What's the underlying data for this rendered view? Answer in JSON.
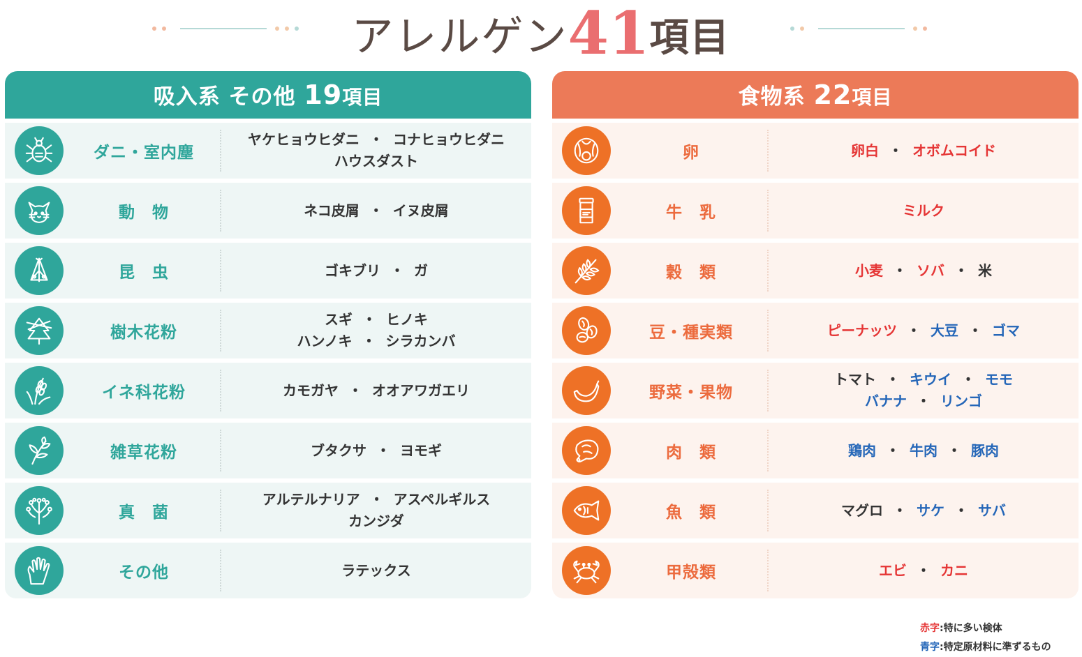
{
  "title": {
    "main": "アレルゲン",
    "number": "41",
    "suffix": "項目"
  },
  "colors": {
    "teal": "#2fa69b",
    "orange": "#ec7a58",
    "red_text": "#e53535",
    "blue_text": "#2466b8"
  },
  "left": {
    "header": {
      "prefix": "吸入系 その他 ",
      "count": "19",
      "suffix": "項目"
    },
    "rows": [
      {
        "icon": "mite-icon",
        "category": "ダニ・室内塵",
        "lines": [
          [
            {
              "t": "ヤケヒョウヒダニ",
              "c": "k"
            },
            {
              "t": "コナヒョウヒダニ",
              "c": "k"
            }
          ],
          [
            {
              "t": "ハウスダスト",
              "c": "k"
            }
          ]
        ]
      },
      {
        "icon": "cat-icon",
        "category": "動　物",
        "lines": [
          [
            {
              "t": "ネコ皮屑",
              "c": "k"
            },
            {
              "t": "イヌ皮屑",
              "c": "k"
            }
          ]
        ]
      },
      {
        "icon": "insect-icon",
        "category": "昆　虫",
        "lines": [
          [
            {
              "t": "ゴキブリ",
              "c": "k"
            },
            {
              "t": "ガ",
              "c": "k"
            }
          ]
        ]
      },
      {
        "icon": "tree-icon",
        "category": "樹木花粉",
        "lines": [
          [
            {
              "t": "スギ",
              "c": "k"
            },
            {
              "t": "ヒノキ",
              "c": "k"
            }
          ],
          [
            {
              "t": "ハンノキ",
              "c": "k"
            },
            {
              "t": "シラカンバ",
              "c": "k"
            }
          ]
        ]
      },
      {
        "icon": "grass-icon",
        "category": "イネ科花粉",
        "lines": [
          [
            {
              "t": "カモガヤ",
              "c": "k"
            },
            {
              "t": "オオアワガエリ",
              "c": "k"
            }
          ]
        ]
      },
      {
        "icon": "weed-icon",
        "category": "雑草花粉",
        "lines": [
          [
            {
              "t": "ブタクサ",
              "c": "k"
            },
            {
              "t": "ヨモギ",
              "c": "k"
            }
          ]
        ]
      },
      {
        "icon": "fungus-icon",
        "category": "真　菌",
        "lines": [
          [
            {
              "t": "アルテルナリア",
              "c": "k"
            },
            {
              "t": "アスペルギルス",
              "c": "k"
            }
          ],
          [
            {
              "t": "カンジダ",
              "c": "k"
            }
          ]
        ]
      },
      {
        "icon": "glove-icon",
        "category": "その他",
        "lines": [
          [
            {
              "t": "ラテックス",
              "c": "k"
            }
          ]
        ]
      }
    ]
  },
  "right": {
    "header": {
      "prefix": "食物系 ",
      "count": "22",
      "suffix": "項目"
    },
    "rows": [
      {
        "icon": "egg-icon",
        "category": "卵",
        "lines": [
          [
            {
              "t": "卵白",
              "c": "r"
            },
            {
              "t": "オボムコイド",
              "c": "r"
            }
          ]
        ]
      },
      {
        "icon": "milk-icon",
        "category": "牛　乳",
        "lines": [
          [
            {
              "t": "ミルク",
              "c": "r"
            }
          ]
        ]
      },
      {
        "icon": "wheat-icon",
        "category": "穀　類",
        "lines": [
          [
            {
              "t": "小麦",
              "c": "r"
            },
            {
              "t": "ソバ",
              "c": "r"
            },
            {
              "t": "米",
              "c": "k"
            }
          ]
        ]
      },
      {
        "icon": "beans-icon",
        "category": "豆・種実類",
        "lines": [
          [
            {
              "t": "ピーナッツ",
              "c": "r"
            },
            {
              "t": "大豆",
              "c": "b"
            },
            {
              "t": "ゴマ",
              "c": "b"
            }
          ]
        ]
      },
      {
        "icon": "banana-icon",
        "category": "野菜・果物",
        "lines": [
          [
            {
              "t": "トマト",
              "c": "k"
            },
            {
              "t": "キウイ",
              "c": "b"
            },
            {
              "t": "モモ",
              "c": "b"
            }
          ],
          [
            {
              "t": "バナナ",
              "c": "b"
            },
            {
              "t": "リンゴ",
              "c": "b"
            }
          ]
        ]
      },
      {
        "icon": "meat-icon",
        "category": "肉　類",
        "lines": [
          [
            {
              "t": "鶏肉",
              "c": "b"
            },
            {
              "t": "牛肉",
              "c": "b"
            },
            {
              "t": "豚肉",
              "c": "b"
            }
          ]
        ]
      },
      {
        "icon": "fish-icon",
        "category": "魚　類",
        "lines": [
          [
            {
              "t": "マグロ",
              "c": "k"
            },
            {
              "t": "サケ",
              "c": "b"
            },
            {
              "t": "サバ",
              "c": "b"
            }
          ]
        ]
      },
      {
        "icon": "crab-icon",
        "category": "甲殻類",
        "lines": [
          [
            {
              "t": "エビ",
              "c": "r"
            },
            {
              "t": "カニ",
              "c": "r"
            }
          ]
        ]
      }
    ]
  },
  "legend": {
    "red_label": "赤字",
    "red_desc": ":特に多い検体",
    "blue_label": "青字",
    "blue_desc": ":特定原材料に準ずるもの"
  }
}
